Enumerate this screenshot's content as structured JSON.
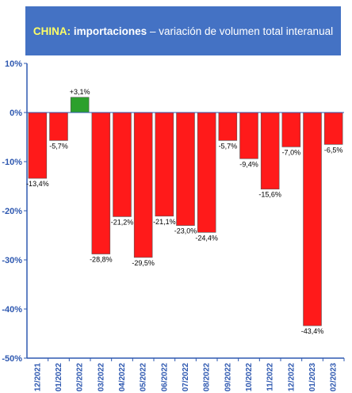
{
  "title": {
    "country": "CHINA",
    "colon": ":",
    "subject": "importaciones",
    "rest": " – variación de volumen total interanual"
  },
  "colors": {
    "title_bg": "#4472c4",
    "negative_bar": "#ff1a1a",
    "positive_bar": "#2ca02c",
    "axis": "#2e58b0",
    "plot_bg": "#ffffff"
  },
  "chart_data": {
    "type": "bar",
    "categories": [
      "12/2021",
      "01/2022",
      "02/2022",
      "03/2022",
      "04/2022",
      "05/2022",
      "06/2022",
      "07/2022",
      "08/2022",
      "09/2022",
      "10/2022",
      "11/2022",
      "12/2022",
      "01/2023",
      "02/2023"
    ],
    "values": [
      -13.4,
      -5.7,
      3.1,
      -28.8,
      -21.2,
      -29.5,
      -21.1,
      -23.0,
      -24.4,
      -5.7,
      -9.4,
      -15.6,
      -7.0,
      -43.4,
      -6.5
    ],
    "data_labels": [
      "-13,4%",
      "-5,7%",
      "+3,1%",
      "-28,8%",
      "-21,2%",
      "-29,5%",
      "-21,1%",
      "-23,0%",
      "-24,4%",
      "-5,7%",
      "-9,4%",
      "-15,6%",
      "-7,0%",
      "-43,4%",
      "-6,5%"
    ],
    "yticks": [
      10,
      0,
      -10,
      -20,
      -30,
      -40,
      -50
    ],
    "ytick_labels": [
      "10%",
      "0%",
      "-10%",
      "-20%",
      "-30%",
      "-40%",
      "-50%"
    ],
    "ylim": [
      -50,
      10
    ],
    "grid": false,
    "legend": "none"
  }
}
